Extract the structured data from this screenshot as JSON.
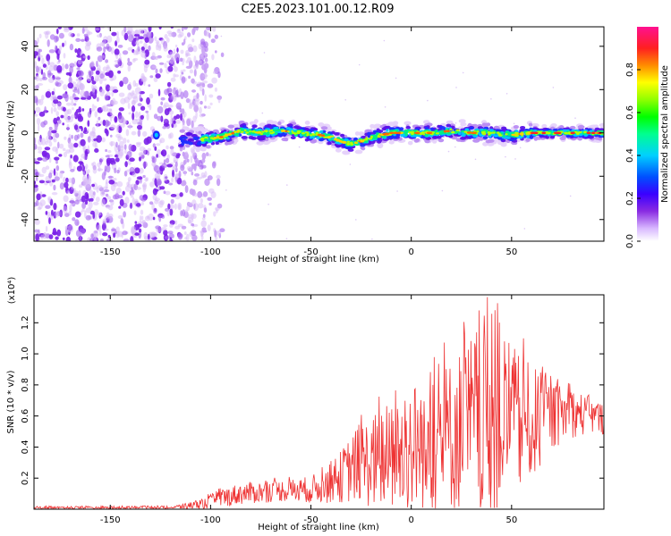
{
  "title": "C2E5.2023.101.00.12.R09",
  "chart_data": [
    {
      "type": "heatmap",
      "name": "spectrogram",
      "xlabel": "Height of straight line (km)",
      "ylabel": "Frequency (Hz)",
      "xlim": [
        -188,
        96
      ],
      "ylim": [
        -50,
        49
      ],
      "xticks": [
        -150,
        -100,
        -50,
        0,
        50
      ],
      "yticks": [
        -40,
        -20,
        0,
        20,
        40
      ],
      "ridge": {
        "x": [
          -115,
          -105,
          -95,
          -85,
          -75,
          -65,
          -55,
          -45,
          -40,
          -35,
          -30,
          -25,
          -20,
          -15,
          -10,
          -5,
          0,
          10,
          20,
          30,
          40,
          50,
          60,
          70,
          80,
          90,
          96
        ],
        "freq": [
          -3,
          -3,
          -2,
          1,
          0,
          1,
          0,
          -1,
          -2,
          -4,
          -5,
          -4,
          -2,
          -1,
          0,
          0,
          0,
          0,
          1,
          0,
          0,
          -1,
          0,
          0,
          0,
          0,
          0
        ]
      },
      "noise_region_x": [
        -188,
        -102
      ],
      "colorbar": {
        "label": "Normalized spectral amplitude",
        "range": [
          0,
          1
        ],
        "ticks": [
          0.0,
          0.2,
          0.4,
          0.6,
          0.8
        ],
        "tick_labels": [
          "0.0",
          "0.2",
          "0.4",
          "0.6",
          "0.8"
        ]
      }
    },
    {
      "type": "line",
      "name": "snr",
      "xlabel": "Height of straight line (km)",
      "ylabel": "SNR (10 * v/v)",
      "scale_label": "(x10⁴)",
      "xlim": [
        -188,
        96
      ],
      "ylim": [
        0,
        1.38
      ],
      "xticks": [
        -150,
        -100,
        -50,
        0,
        50
      ],
      "yticks": [
        0.2,
        0.4,
        0.6,
        0.8,
        1.0,
        1.2
      ],
      "ytick_labels": [
        "0.2",
        "0.4",
        "0.6",
        "0.8",
        "1.0",
        "1.2"
      ],
      "color": "#ee3333",
      "envelope": {
        "x": [
          -188,
          -120,
          -105,
          -95,
          -85,
          -75,
          -65,
          -55,
          -45,
          -38,
          -30,
          -25,
          -20,
          -15,
          -10,
          -5,
          0,
          10,
          20,
          30,
          35,
          40,
          45,
          50,
          60,
          70,
          80,
          90,
          96
        ],
        "mean": [
          0.01,
          0.01,
          0.03,
          0.07,
          0.1,
          0.11,
          0.12,
          0.12,
          0.14,
          0.18,
          0.26,
          0.3,
          0.3,
          0.32,
          0.33,
          0.35,
          0.4,
          0.42,
          0.48,
          0.55,
          0.6,
          0.6,
          0.6,
          0.55,
          0.55,
          0.6,
          0.62,
          0.6,
          0.58
        ],
        "spread": [
          0.008,
          0.01,
          0.03,
          0.06,
          0.07,
          0.07,
          0.07,
          0.08,
          0.1,
          0.14,
          0.22,
          0.26,
          0.3,
          0.34,
          0.36,
          0.38,
          0.42,
          0.45,
          0.5,
          0.58,
          0.65,
          0.66,
          0.6,
          0.5,
          0.38,
          0.22,
          0.16,
          0.12,
          0.1
        ]
      }
    }
  ]
}
